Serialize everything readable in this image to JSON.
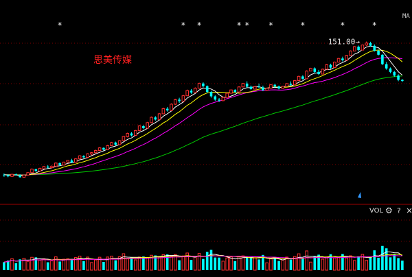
{
  "chart_data": {
    "type": "candlestick",
    "title": "思美传媒",
    "price_panel": {
      "ylim": [
        1,
        160
      ],
      "ma_label": "MA",
      "max_marker": {
        "label": "151.00→",
        "value": 151.0,
        "index": 91
      },
      "star_marker": "*",
      "star_indices": [
        14,
        45,
        49,
        59,
        61,
        67,
        75,
        85,
        93
      ],
      "colors": {
        "up": "#ff3030",
        "down": "#00ffff",
        "ma5": "#ffffff",
        "ma10": "#ffff00",
        "ma20": "#ff00ff",
        "ma60": "#00cc00",
        "grid": "#800000",
        "title": "#ff2020",
        "star": "#ffffff"
      },
      "candles": [
        [
          13.0,
          13.3,
          12.5,
          12.9
        ],
        [
          12.9,
          13.1,
          12.4,
          12.6
        ],
        [
          12.6,
          13.2,
          12.5,
          13.1
        ],
        [
          13.1,
          13.3,
          12.8,
          13.0
        ],
        [
          12.9,
          13.1,
          12.3,
          12.4
        ],
        [
          12.4,
          13.0,
          12.3,
          12.9
        ],
        [
          12.9,
          13.6,
          12.8,
          13.5
        ],
        [
          13.5,
          14.6,
          13.4,
          14.4
        ],
        [
          14.4,
          14.5,
          13.7,
          13.9
        ],
        [
          13.9,
          14.8,
          13.8,
          14.6
        ],
        [
          14.5,
          15.3,
          14.4,
          15.1
        ],
        [
          15.1,
          15.5,
          14.6,
          14.8
        ],
        [
          14.8,
          15.4,
          14.6,
          15.2
        ],
        [
          15.2,
          16.3,
          15.1,
          16.1
        ],
        [
          16.1,
          16.3,
          15.3,
          15.5
        ],
        [
          15.5,
          16.5,
          15.4,
          16.4
        ],
        [
          16.4,
          17.0,
          16.2,
          16.9
        ],
        [
          16.9,
          17.4,
          16.1,
          16.3
        ],
        [
          16.3,
          17.6,
          16.2,
          17.4
        ],
        [
          17.4,
          18.6,
          17.3,
          18.4
        ],
        [
          18.3,
          18.6,
          17.6,
          17.9
        ],
        [
          17.9,
          19.3,
          17.8,
          19.1
        ],
        [
          19.0,
          19.7,
          18.6,
          19.5
        ],
        [
          19.5,
          20.6,
          19.3,
          20.3
        ],
        [
          20.3,
          21.6,
          20.1,
          21.3
        ],
        [
          21.3,
          21.5,
          20.3,
          20.6
        ],
        [
          20.6,
          22.5,
          20.4,
          22.2
        ],
        [
          22.2,
          23.8,
          22.0,
          23.5
        ],
        [
          23.5,
          23.9,
          22.2,
          22.6
        ],
        [
          22.6,
          24.6,
          22.4,
          24.3
        ],
        [
          24.3,
          26.6,
          24.1,
          26.3
        ],
        [
          26.2,
          28.2,
          25.8,
          27.8
        ],
        [
          27.8,
          28.4,
          26.3,
          26.8
        ],
        [
          26.8,
          29.6,
          26.6,
          29.3
        ],
        [
          29.3,
          32.3,
          29.0,
          31.9
        ],
        [
          31.8,
          32.4,
          30.0,
          30.6
        ],
        [
          30.6,
          34.4,
          30.4,
          33.9
        ],
        [
          33.9,
          37.9,
          33.5,
          37.4
        ],
        [
          37.3,
          38.2,
          35.2,
          35.9
        ],
        [
          35.9,
          40.5,
          35.6,
          39.9
        ],
        [
          39.9,
          44.6,
          39.5,
          43.9
        ],
        [
          43.8,
          45.2,
          41.5,
          42.4
        ],
        [
          42.4,
          48.3,
          42.1,
          47.6
        ],
        [
          47.6,
          52.6,
          47.0,
          51.8
        ],
        [
          51.8,
          53.6,
          48.8,
          50.3
        ],
        [
          50.3,
          56.6,
          50.0,
          55.6
        ],
        [
          55.6,
          62.3,
          55.1,
          61.2
        ],
        [
          61.1,
          62.9,
          57.6,
          59.0
        ],
        [
          59.0,
          64.9,
          58.6,
          63.9
        ],
        [
          63.9,
          70.8,
          63.5,
          69.8
        ],
        [
          69.7,
          71.2,
          64.9,
          66.4
        ],
        [
          66.4,
          67.3,
          58.4,
          59.6
        ],
        [
          59.6,
          61.0,
          53.6,
          55.0
        ],
        [
          55.0,
          56.1,
          50.6,
          51.8
        ],
        [
          51.8,
          53.3,
          49.6,
          50.8
        ],
        [
          50.8,
          54.6,
          50.3,
          53.9
        ],
        [
          53.9,
          58.8,
          53.5,
          58.2
        ],
        [
          58.2,
          62.5,
          57.9,
          61.9
        ],
        [
          61.8,
          62.9,
          58.6,
          59.6
        ],
        [
          59.6,
          66.2,
          59.3,
          65.4
        ],
        [
          65.4,
          70.5,
          65.0,
          69.7
        ],
        [
          69.6,
          72.5,
          64.6,
          65.7
        ],
        [
          65.7,
          67.2,
          61.7,
          62.8
        ],
        [
          62.8,
          66.4,
          62.4,
          65.7
        ],
        [
          65.7,
          69.6,
          64.5,
          64.9
        ],
        [
          64.9,
          67.0,
          60.6,
          61.6
        ],
        [
          61.6,
          64.5,
          61.2,
          63.8
        ],
        [
          63.8,
          68.7,
          63.4,
          68.1
        ],
        [
          68.1,
          69.5,
          64.7,
          66.0
        ],
        [
          66.0,
          67.1,
          62.4,
          63.5
        ],
        [
          63.5,
          66.8,
          63.1,
          66.0
        ],
        [
          66.0,
          70.2,
          65.6,
          69.5
        ],
        [
          69.4,
          72.4,
          66.6,
          68.0
        ],
        [
          68.0,
          74.4,
          67.6,
          73.5
        ],
        [
          73.5,
          80.5,
          73.0,
          79.5
        ],
        [
          79.4,
          81.2,
          74.6,
          76.0
        ],
        [
          76.0,
          88.8,
          75.6,
          87.6
        ],
        [
          87.6,
          93.1,
          87.2,
          92.1
        ],
        [
          92.0,
          93.8,
          84.0,
          86.3
        ],
        [
          86.3,
          89.6,
          81.4,
          82.9
        ],
        [
          82.9,
          91.7,
          82.4,
          90.7
        ],
        [
          90.6,
          99.5,
          90.2,
          98.4
        ],
        [
          98.3,
          100.4,
          91.4,
          93.4
        ],
        [
          93.4,
          104.4,
          93.0,
          103.4
        ],
        [
          103.3,
          111.6,
          102.8,
          110.5
        ],
        [
          110.4,
          114.2,
          104.4,
          106.8
        ],
        [
          106.8,
          118.0,
          106.4,
          116.8
        ],
        [
          116.8,
          128.2,
          116.3,
          126.9
        ],
        [
          126.8,
          138.8,
          126.3,
          137.4
        ],
        [
          137.3,
          140.2,
          125.7,
          128.9
        ],
        [
          128.9,
          142.9,
          128.4,
          141.5
        ],
        [
          141.4,
          151.0,
          138.8,
          146.7
        ],
        [
          146.6,
          150.4,
          137.0,
          139.6
        ],
        [
          139.6,
          143.2,
          125.6,
          127.4
        ],
        [
          127.4,
          130.2,
          116.8,
          118.3
        ],
        [
          118.3,
          119.9,
          97.8,
          99.5
        ],
        [
          99.5,
          103.6,
          89.8,
          91.9
        ],
        [
          91.9,
          93.7,
          84.3,
          86.3
        ],
        [
          86.3,
          87.9,
          79.0,
          80.6
        ],
        [
          80.6,
          82.6,
          72.7,
          74.5
        ],
        [
          74.5,
          75.7,
          71.7,
          73.0
        ]
      ]
    },
    "volume_panel": {
      "label": "VOL",
      "gear_symbol": "⚙",
      "help_symbol": "?",
      "close_symbol": "×",
      "ma_colors": [
        "#ffffff",
        "#ffff00",
        "#ff00ff"
      ]
    }
  }
}
